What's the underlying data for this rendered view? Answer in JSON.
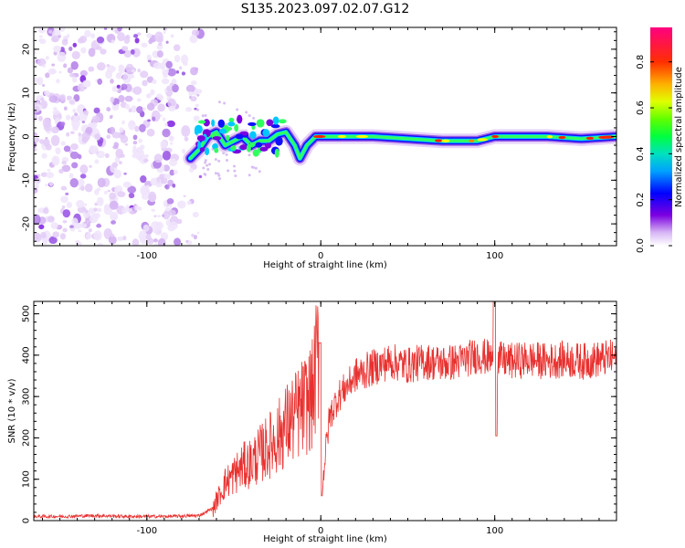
{
  "title": "S135.2023.097.02.07.G12",
  "colors": {
    "snr_line": "#e8312f",
    "spectrogram_scatter": "#8a2be2",
    "spectrogram_scatter_light": "#e3cdf7",
    "axis": "#000000"
  },
  "chart_data": [
    {
      "type": "heatmap",
      "name": "spectrogram",
      "xlabel": "Height of straight line (km)",
      "ylabel": "Frequency (Hz)",
      "xlim": [
        -165,
        170
      ],
      "ylim": [
        -25,
        25
      ],
      "x_ticks": [
        -100,
        0,
        100
      ],
      "y_ticks": [
        -20,
        -10,
        0,
        10,
        20
      ],
      "colorbar": {
        "label": "Normalized spectral amplitude",
        "range": [
          0.0,
          0.95
        ],
        "ticks": [
          0.0,
          0.2,
          0.4,
          0.6,
          0.8
        ],
        "colormap": [
          "#ffffff",
          "#e3cdf7",
          "#7b00e0",
          "#0000ff",
          "#00c8ff",
          "#00ff80",
          "#40ff00",
          "#ffff00",
          "#ff8000",
          "#ff0000",
          "#ff0080"
        ]
      },
      "noise_region_x": [
        -165,
        -75
      ],
      "signal_track": [
        {
          "x": -75,
          "y": -5
        },
        {
          "x": -70,
          "y": -3
        },
        {
          "x": -65,
          "y": 0
        },
        {
          "x": -60,
          "y": 1
        },
        {
          "x": -55,
          "y": -2
        },
        {
          "x": -50,
          "y": -1
        },
        {
          "x": -45,
          "y": 0
        },
        {
          "x": -40,
          "y": -2
        },
        {
          "x": -35,
          "y": -1
        },
        {
          "x": -30,
          "y": -1
        },
        {
          "x": -25,
          "y": 0.5
        },
        {
          "x": -20,
          "y": 1
        },
        {
          "x": -15,
          "y": -2
        },
        {
          "x": -12,
          "y": -5
        },
        {
          "x": -8,
          "y": -2
        },
        {
          "x": -3,
          "y": 0
        },
        {
          "x": 10,
          "y": 0
        },
        {
          "x": 30,
          "y": 0
        },
        {
          "x": 50,
          "y": -0.5
        },
        {
          "x": 70,
          "y": -1
        },
        {
          "x": 90,
          "y": -1
        },
        {
          "x": 100,
          "y": 0
        },
        {
          "x": 130,
          "y": 0
        },
        {
          "x": 150,
          "y": -0.5
        },
        {
          "x": 170,
          "y": 0
        }
      ]
    },
    {
      "type": "line",
      "name": "snr",
      "xlabel": "Height of straight line (km)",
      "ylabel": "SNR (10 * v/v)",
      "xlim": [
        -165,
        170
      ],
      "ylim": [
        0,
        530
      ],
      "x_ticks": [
        -100,
        0,
        100
      ],
      "y_ticks": [
        0,
        100,
        200,
        300,
        400,
        500
      ],
      "series": [
        {
          "x": [
            -165,
            -150,
            -130,
            -110,
            -90,
            -70,
            -62,
            -55,
            -50,
            -45,
            -40,
            -35,
            -30,
            -25,
            -20,
            -15,
            -10,
            -5,
            -1,
            0,
            5,
            10,
            20,
            30,
            40,
            50,
            60,
            70,
            80,
            90,
            100,
            110,
            120,
            130,
            140,
            150,
            160,
            170
          ],
          "y": [
            10,
            10,
            12,
            10,
            10,
            12,
            30,
            90,
            110,
            130,
            140,
            160,
            180,
            200,
            230,
            250,
            275,
            300,
            420,
            60,
            250,
            300,
            350,
            370,
            385,
            375,
            385,
            380,
            385,
            400,
            390,
            385,
            390,
            385,
            390,
            385,
            390,
            395
          ]
        }
      ]
    }
  ]
}
